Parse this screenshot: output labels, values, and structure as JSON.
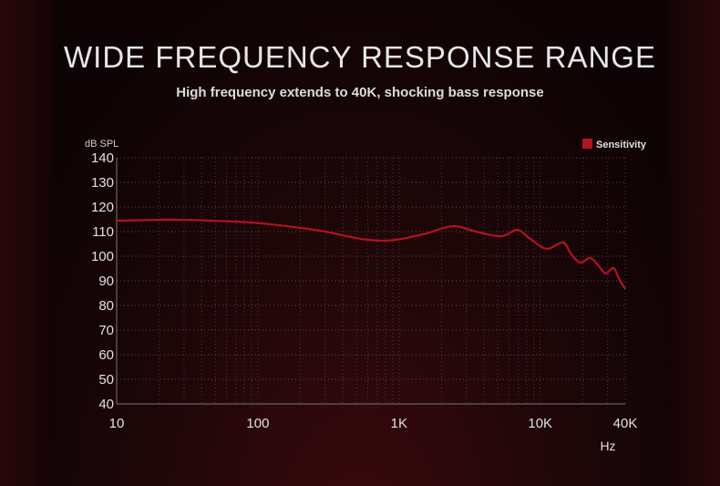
{
  "title": "WIDE FREQUENCY RESPONSE RANGE",
  "subtitle": "High frequency extends to 40K, shocking bass response",
  "chart_data": {
    "type": "line",
    "ylabel": "dB SPL",
    "xlabel": "Hz",
    "xscale": "log",
    "xlim": [
      10,
      40000
    ],
    "ylim": [
      40,
      140
    ],
    "yticks": [
      40,
      50,
      60,
      70,
      80,
      90,
      100,
      110,
      120,
      130,
      140
    ],
    "xticks": [
      {
        "v": 10,
        "label": "10"
      },
      {
        "v": 100,
        "label": "100"
      },
      {
        "v": 1000,
        "label": "1K"
      },
      {
        "v": 10000,
        "label": "10K"
      },
      {
        "v": 40000,
        "label": "40K"
      }
    ],
    "grid": true,
    "legend_position": "top-right",
    "series": [
      {
        "name": "Sensitivity",
        "color": "#b3121f",
        "x": [
          10,
          20,
          30,
          60,
          100,
          200,
          300,
          569,
          900,
          1500,
          2400,
          3500,
          5300,
          6900,
          8500,
          11100,
          14500,
          16500,
          19200,
          22600,
          26000,
          29000,
          33000,
          36000,
          40000
        ],
        "y": [
          114.4,
          114.8,
          114.8,
          114.2,
          113.5,
          111.5,
          110,
          106.8,
          106.5,
          109,
          112.2,
          110,
          108.1,
          110.7,
          107,
          103,
          105.6,
          101,
          97.4,
          99.3,
          96,
          93,
          95.2,
          91,
          86.7
        ]
      }
    ]
  }
}
